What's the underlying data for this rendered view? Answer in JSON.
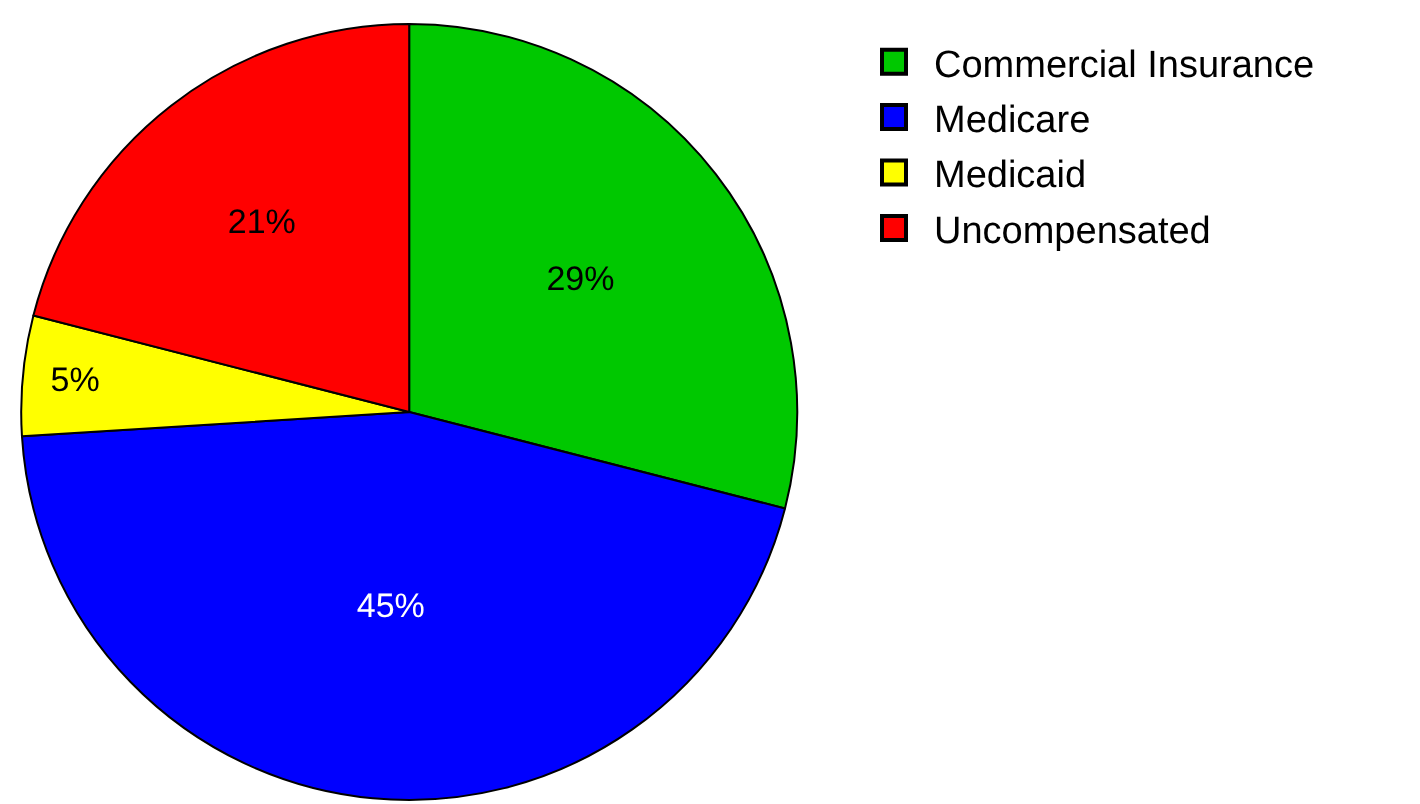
{
  "chart_data": {
    "type": "pie",
    "categories": [
      "Commercial Insurance",
      "Medicare",
      "Medicaid",
      "Uncompensated"
    ],
    "values": [
      29,
      45,
      5,
      21
    ],
    "colors": [
      "#00c800",
      "#0000ff",
      "#ffff00",
      "#ff0000"
    ],
    "value_labels": [
      "29%",
      "45%",
      "5%",
      "21%"
    ],
    "legend": "top right"
  }
}
